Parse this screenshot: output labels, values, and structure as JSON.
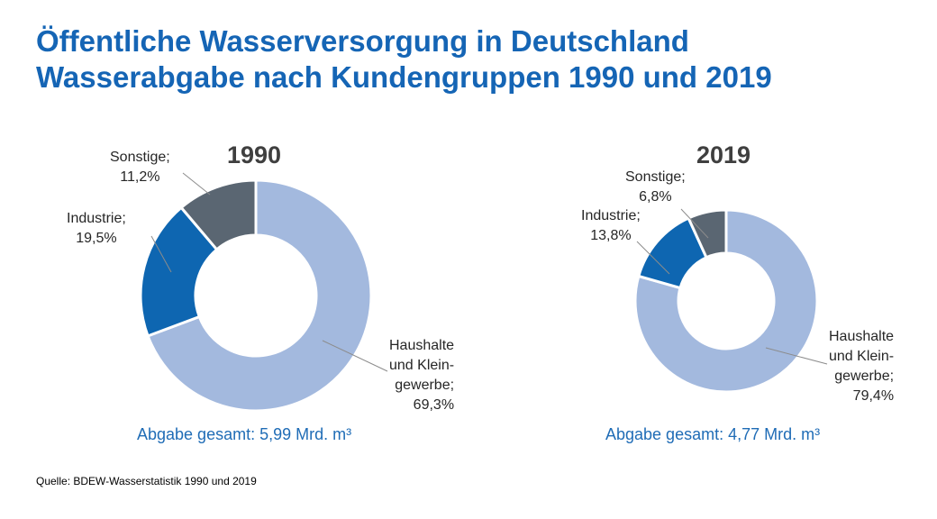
{
  "title": {
    "line1": "Öffentliche Wasserversorgung in Deutschland",
    "line2": "Wasserabgabe nach Kundengruppen 1990 und 2019"
  },
  "source": "Quelle: BDEW-Wasserstatistik 1990 und 2019",
  "colors": {
    "title": "#1565b5",
    "haushalte": "#a3b9de",
    "industrie": "#0e66b1",
    "sonstige": "#5a6672",
    "total_text": "#1f6cb6"
  },
  "chart_data": [
    {
      "type": "pie",
      "donut": true,
      "title": "1990",
      "slices": [
        {
          "key": "haushalte",
          "value": 69.3,
          "label_lines": [
            "Haushalte",
            "und Klein-",
            "gewerbe;",
            "69,3%"
          ],
          "color": "#a3b9de"
        },
        {
          "key": "industrie",
          "value": 19.5,
          "label_lines": [
            "Industrie;",
            "19,5%"
          ],
          "color": "#0e66b1"
        },
        {
          "key": "sonstige",
          "value": 11.2,
          "label_lines": [
            "Sonstige;",
            "11,2%"
          ],
          "color": "#5a6672"
        }
      ],
      "total_label": "Abgabe gesamt: 5,99 Mrd. m³"
    },
    {
      "type": "pie",
      "donut": true,
      "title": "2019",
      "slices": [
        {
          "key": "haushalte",
          "value": 79.4,
          "label_lines": [
            "Haushalte",
            "und Klein-",
            "gewerbe;",
            "79,4%"
          ],
          "color": "#a3b9de"
        },
        {
          "key": "industrie",
          "value": 13.8,
          "label_lines": [
            "Industrie;",
            "13,8%"
          ],
          "color": "#0e66b1"
        },
        {
          "key": "sonstige",
          "value": 6.8,
          "label_lines": [
            "Sonstige;",
            "6,8%"
          ],
          "color": "#5a6672"
        }
      ],
      "total_label": "Abgabe gesamt: 4,77 Mrd. m³"
    }
  ]
}
